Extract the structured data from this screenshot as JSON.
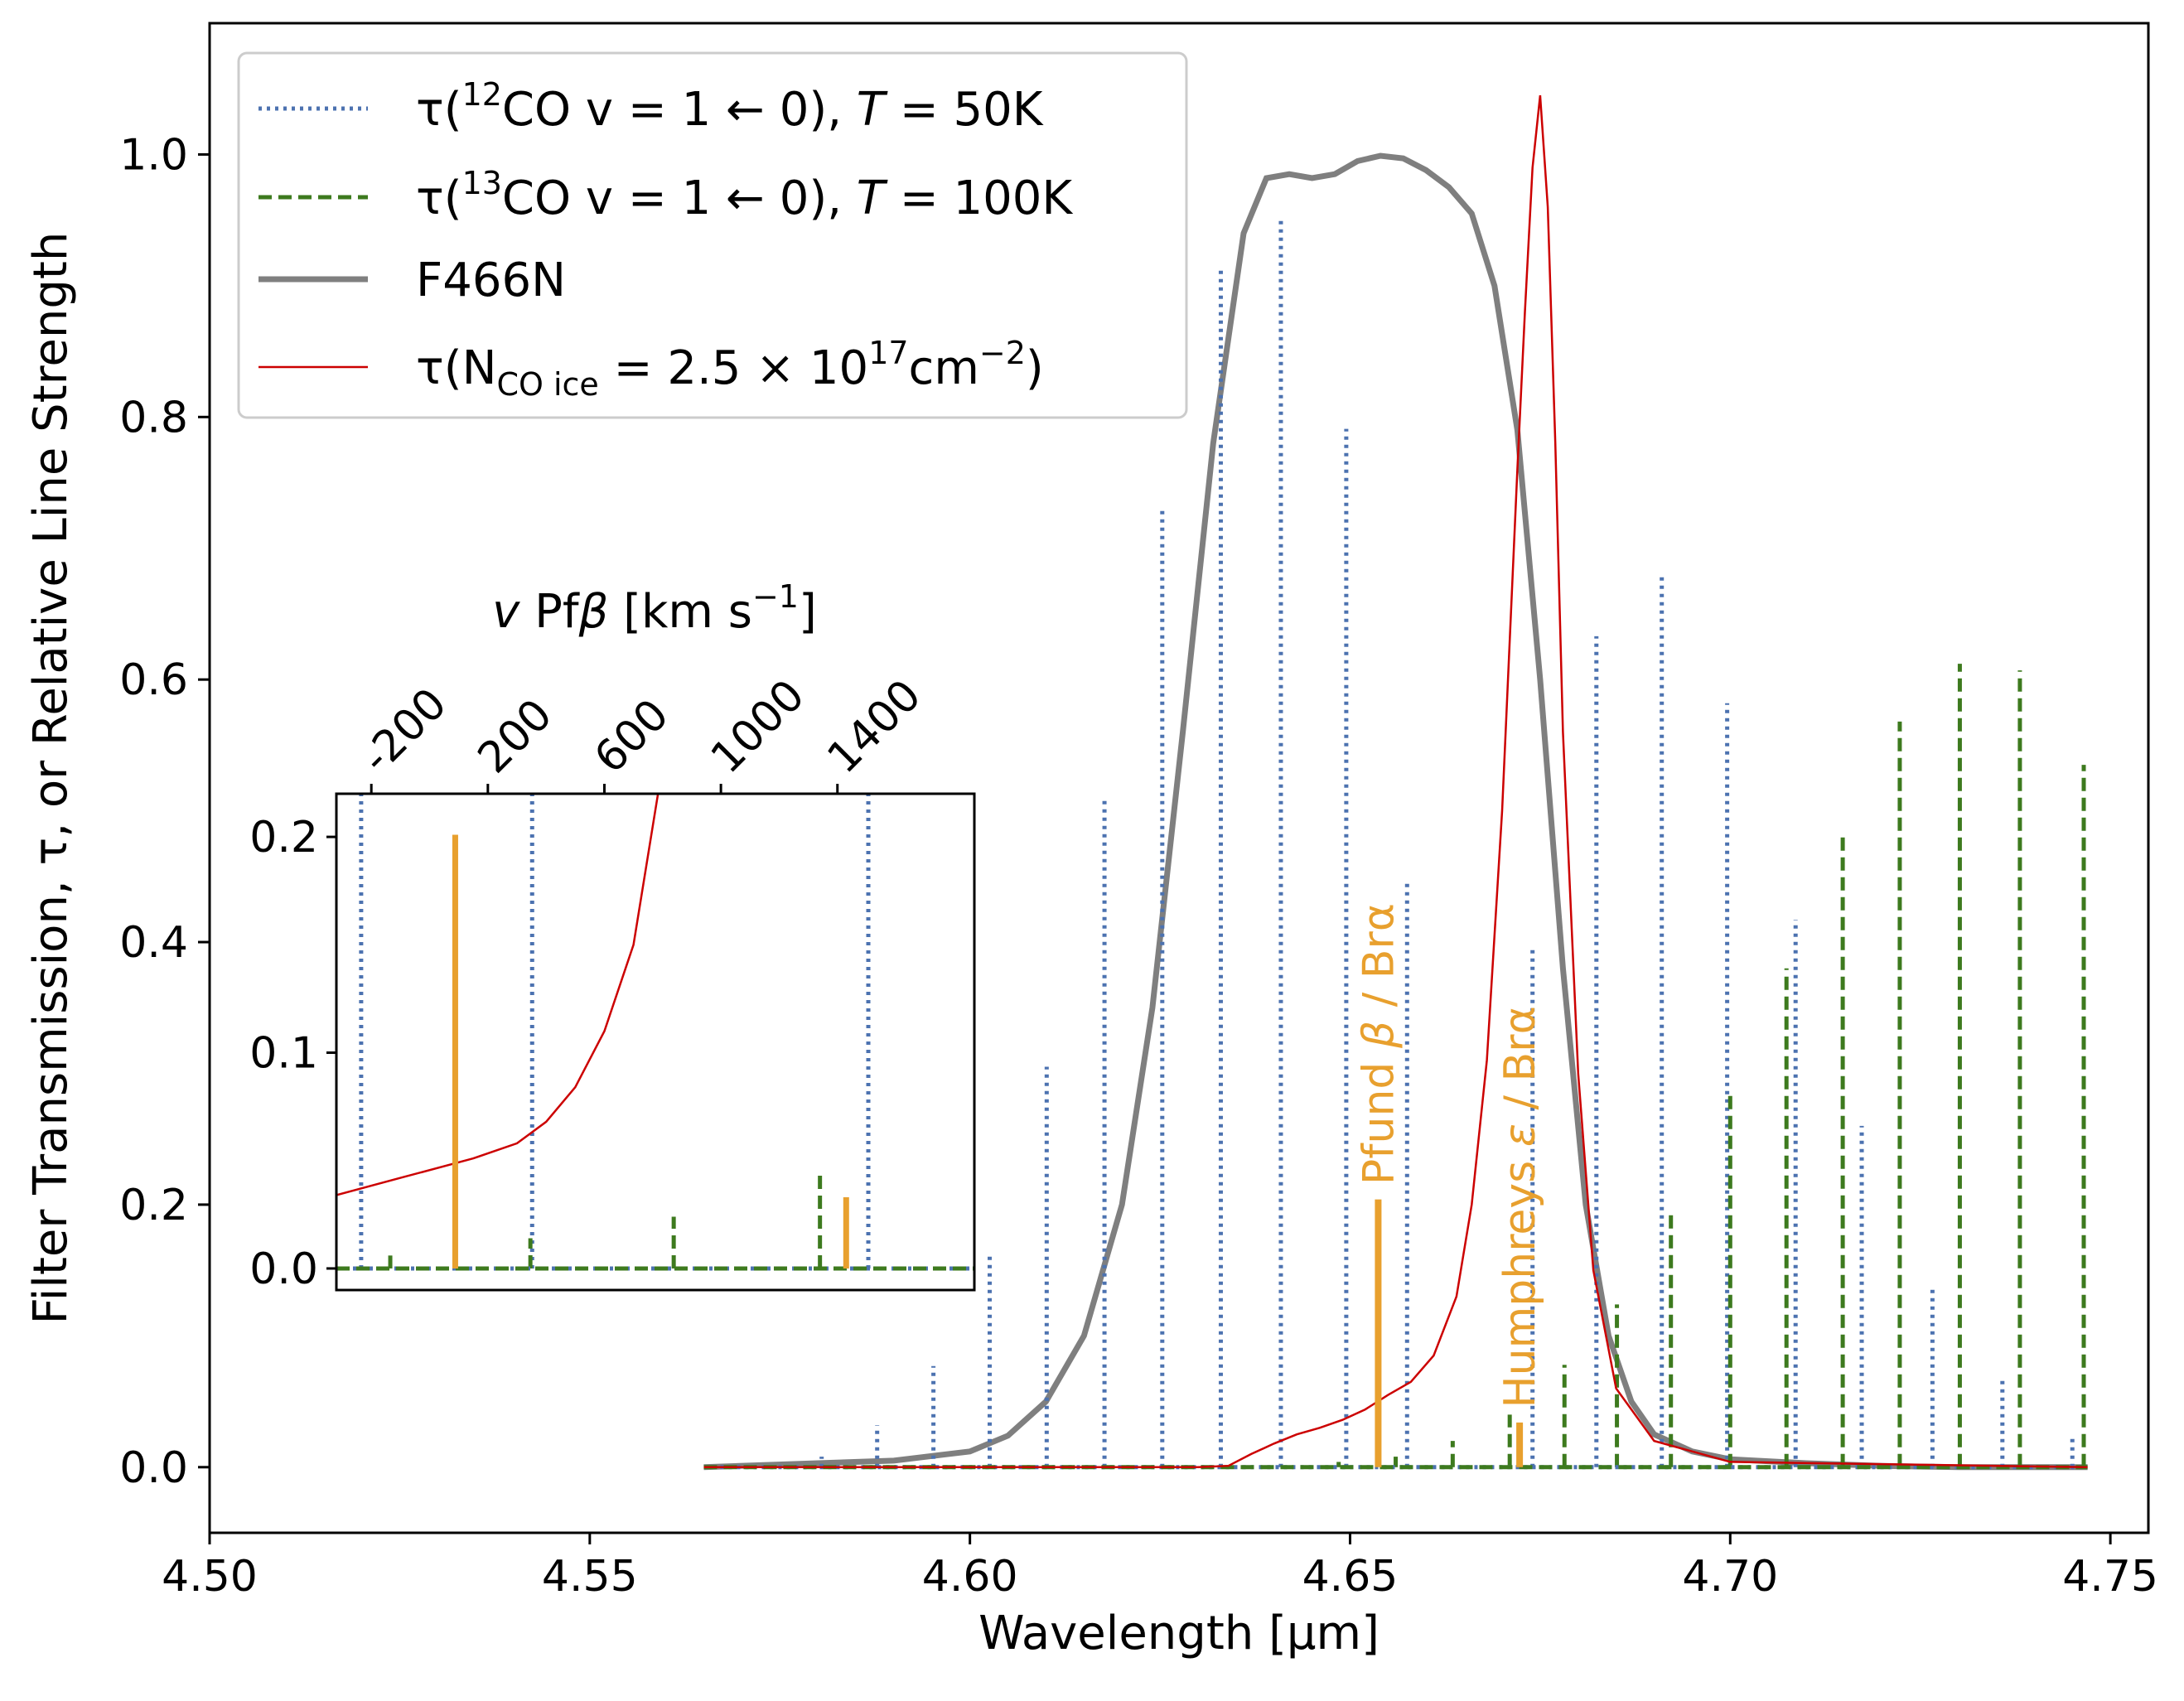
{
  "chart_data": [
    {
      "type": "line",
      "title": "",
      "xlabel": "Wavelength [μm]",
      "ylabel": "Filter Transmission, τ, or Relative Line Strength",
      "xlim": [
        4.5,
        4.755
      ],
      "ylim": [
        -0.05,
        1.1
      ],
      "xticks": [
        4.5,
        4.55,
        4.6,
        4.65,
        4.7,
        4.75
      ],
      "xtick_labels": [
        "4.50",
        "4.55",
        "4.60",
        "4.65",
        "4.70",
        "4.75"
      ],
      "yticks": [
        0.0,
        0.2,
        0.4,
        0.6,
        0.8,
        1.0
      ],
      "ytick_labels": [
        "0.0",
        "0.2",
        "0.4",
        "0.6",
        "0.8",
        "1.0"
      ],
      "grid": false,
      "legend_position": "top-left",
      "series": [
        {
          "key": "co12",
          "name": "τ(¹²CO v = 1 ← 0), T = 50K",
          "legend_parts": {
            "pre": "τ(",
            "sup": "12",
            "mid": "CO v = 1 ← 0), ",
            "italic": "T",
            "post": " = 50K"
          },
          "color": "#4c72b0",
          "style": "dotted",
          "sticks": [
            [
              4.5805,
              0.008
            ],
            [
              4.5878,
              0.032
            ],
            [
              4.5952,
              0.077
            ],
            [
              4.6026,
              0.162
            ],
            [
              4.6101,
              0.305
            ],
            [
              4.6177,
              0.508
            ],
            [
              4.6253,
              0.729
            ],
            [
              4.633,
              0.912
            ],
            [
              4.6409,
              0.951
            ],
            [
              4.6495,
              0.791
            ],
            [
              4.6575,
              0.445
            ],
            [
              4.674,
              0.395
            ],
            [
              4.6824,
              0.633
            ],
            [
              4.691,
              0.678
            ],
            [
              4.6996,
              0.582
            ],
            [
              4.7086,
              0.417
            ],
            [
              4.7173,
              0.26
            ],
            [
              4.7266,
              0.136
            ],
            [
              4.7358,
              0.069
            ],
            [
              4.745,
              0.024
            ]
          ]
        },
        {
          "key": "co13",
          "name": "τ(¹³CO v = 1 ← 0), T = 100K",
          "legend_parts": {
            "pre": "τ(",
            "sup": "13",
            "mid": "CO v = 1 ← 0), ",
            "italic": "T",
            "post": " = 100K"
          },
          "color": "#3d7a1e",
          "style": "dashed",
          "sticks": [
            [
              4.6485,
              0.004
            ],
            [
              4.656,
              0.008
            ],
            [
              4.6635,
              0.02
            ],
            [
              4.671,
              0.04
            ],
            [
              4.6782,
              0.078
            ],
            [
              4.6851,
              0.124
            ],
            [
              4.6922,
              0.195
            ],
            [
              4.7,
              0.285
            ],
            [
              4.7074,
              0.38
            ],
            [
              4.7148,
              0.48
            ],
            [
              4.7223,
              0.568
            ],
            [
              4.7302,
              0.612
            ],
            [
              4.7381,
              0.607
            ],
            [
              4.7465,
              0.535
            ]
          ]
        },
        {
          "key": "filter",
          "name": "F466N",
          "color": "#7f7f7f",
          "style": "solid",
          "x": [
            4.565,
            4.58,
            4.59,
            4.6,
            4.605,
            4.61,
            4.615,
            4.62,
            4.624,
            4.628,
            4.632,
            4.636,
            4.639,
            4.642,
            4.645,
            4.648,
            4.651,
            4.654,
            4.657,
            4.66,
            4.663,
            4.666,
            4.669,
            4.672,
            4.675,
            4.678,
            4.681,
            4.684,
            4.687,
            4.69,
            4.695,
            4.7,
            4.71,
            4.72,
            4.73,
            4.747
          ],
          "y": [
            0.0,
            0.003,
            0.005,
            0.012,
            0.024,
            0.05,
            0.1,
            0.2,
            0.35,
            0.56,
            0.78,
            0.94,
            0.982,
            0.985,
            0.982,
            0.985,
            0.995,
            0.999,
            0.997,
            0.988,
            0.975,
            0.955,
            0.9,
            0.79,
            0.6,
            0.38,
            0.2,
            0.1,
            0.05,
            0.025,
            0.012,
            0.006,
            0.003,
            0.001,
            0.0,
            0.0
          ]
        },
        {
          "key": "ice",
          "name": "τ(N_CO ice = 2.5 × 10¹⁷cm⁻²)",
          "legend_parts": {
            "pre": "τ(N",
            "sub": "CO ice",
            "mid": " = 2.5 × 10",
            "sup": "17",
            "post": "cm",
            "sup2": "−2",
            "end": ")"
          },
          "color": "#cc0000",
          "style": "solid",
          "x": [
            4.565,
            4.6,
            4.63,
            4.634,
            4.637,
            4.64,
            4.643,
            4.646,
            4.649,
            4.652,
            4.655,
            4.658,
            4.661,
            4.664,
            4.666,
            4.668,
            4.67,
            4.672,
            4.673,
            4.674,
            4.675,
            4.676,
            4.677,
            4.678,
            4.68,
            4.682,
            4.685,
            4.69,
            4.7,
            4.747
          ],
          "y": [
            0.0,
            0.0,
            0.0,
            0.001,
            0.01,
            0.018,
            0.025,
            0.03,
            0.036,
            0.044,
            0.055,
            0.065,
            0.085,
            0.13,
            0.2,
            0.31,
            0.5,
            0.76,
            0.88,
            0.99,
            1.045,
            0.96,
            0.78,
            0.56,
            0.3,
            0.15,
            0.06,
            0.02,
            0.004,
            0.0
          ]
        },
        {
          "key": "hlines",
          "name": "",
          "color": "#e8a02e",
          "style": "solid",
          "sticks": [
            [
              4.6537,
              0.204
            ],
            [
              4.6723,
              0.034
            ]
          ]
        }
      ],
      "line_labels": [
        {
          "parts": {
            "pre": "Pfund ",
            "greek": "β",
            "post": " / Brα"
          },
          "x": 4.6537,
          "y_start": 0.215
        },
        {
          "parts": {
            "pre": "Humphreys ",
            "greek": "ε",
            "post": " / Brα"
          },
          "x": 4.6723,
          "y_start": 0.045
        }
      ]
    },
    {
      "type": "line",
      "title": "",
      "xlabel_parts": {
        "italic": "v",
        "mid": " Pf",
        "greek": "β",
        "post": " [km s",
        "sup": "−1",
        "end": "]"
      },
      "xlim": [
        -320,
        1870
      ],
      "ylim": [
        -0.01,
        0.22
      ],
      "xticks": [
        -200,
        200,
        600,
        1000,
        1400
      ],
      "xtick_labels": [
        "-200",
        "200",
        "600",
        "1000",
        "1400"
      ],
      "yticks": [
        0.0,
        0.1,
        0.2
      ],
      "ytick_labels": [
        "0.0",
        "0.1",
        "0.2"
      ],
      "grid": false,
      "series": [
        {
          "key": "co12",
          "color": "#4c72b0",
          "style": "dotted",
          "sticks": [
            [
              -235,
              0.25
            ],
            [
              352,
              0.25
            ],
            [
              1506,
              0.25
            ]
          ]
        },
        {
          "key": "co13",
          "color": "#3d7a1e",
          "style": "dashed",
          "sticks": [
            [
              -135,
              0.006
            ],
            [
              346,
              0.014
            ],
            [
              838,
              0.024
            ],
            [
              1340,
              0.044
            ]
          ]
        },
        {
          "key": "ice",
          "color": "#cc0000",
          "style": "solid",
          "x": [
            -320,
            -100,
            150,
            300,
            400,
            500,
            600,
            700,
            790
          ],
          "y": [
            0.034,
            0.042,
            0.051,
            0.058,
            0.068,
            0.084,
            0.11,
            0.15,
            0.225
          ]
        },
        {
          "key": "hlines",
          "color": "#e8a02e",
          "style": "solid",
          "sticks": [
            [
              88,
              0.201
            ],
            [
              1430,
              0.033
            ]
          ]
        }
      ]
    }
  ]
}
